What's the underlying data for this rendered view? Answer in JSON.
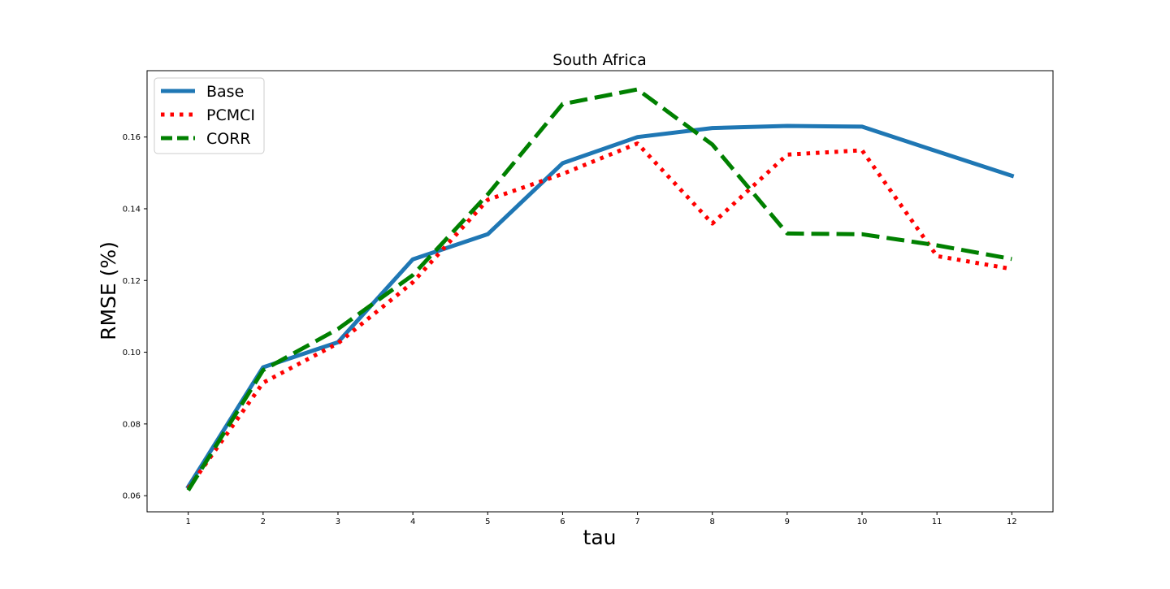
{
  "chart_data": {
    "type": "line",
    "title": "South Africa",
    "xlabel": "tau",
    "ylabel": "RMSE (%)",
    "x": [
      1,
      2,
      3,
      4,
      5,
      6,
      7,
      8,
      9,
      10,
      11,
      12
    ],
    "xticks": [
      "1",
      "2",
      "3",
      "4",
      "5",
      "6",
      "7",
      "8",
      "9",
      "10",
      "11",
      "12"
    ],
    "xlim": [
      0.45,
      12.55
    ],
    "ylim": [
      0.0555,
      0.1785
    ],
    "yticks": [
      0.06,
      0.08,
      0.1,
      0.12,
      0.14,
      0.16
    ],
    "ytick_labels": [
      "0.06",
      "0.08",
      "0.10",
      "0.12",
      "0.14",
      "0.16"
    ],
    "grid": false,
    "legend_position": "upper-left",
    "series": [
      {
        "name": "Base",
        "color": "#1f77b4",
        "style": "solid",
        "values": [
          0.0625,
          0.0958,
          0.1028,
          0.1259,
          0.1329,
          0.1527,
          0.16,
          0.1625,
          0.1631,
          0.1629,
          0.156,
          0.1492
        ]
      },
      {
        "name": "PCMCI",
        "color": "#ff0000",
        "style": "dotted",
        "values": [
          0.062,
          0.0915,
          0.1025,
          0.1195,
          0.1425,
          0.1497,
          0.1582,
          0.1359,
          0.1551,
          0.1563,
          0.1268,
          0.1232
        ]
      },
      {
        "name": "CORR",
        "color": "#008000",
        "style": "dashed",
        "values": [
          0.0615,
          0.095,
          0.1065,
          0.1215,
          0.144,
          0.1692,
          0.1733,
          0.1579,
          0.1331,
          0.1329,
          0.1298,
          0.126
        ]
      }
    ]
  }
}
